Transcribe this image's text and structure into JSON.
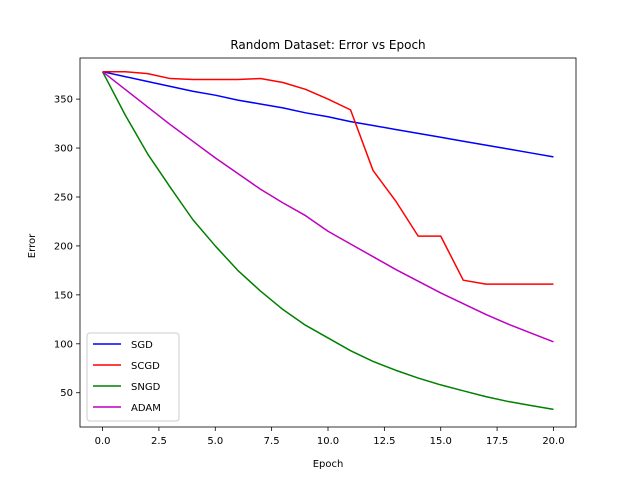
{
  "chart_data": {
    "type": "line",
    "title": "Random Dataset: Error vs Epoch",
    "xlabel": "Epoch",
    "ylabel": "Error",
    "xlim": [
      -1.0,
      21.0
    ],
    "ylim": [
      15,
      392
    ],
    "xticks": [
      0,
      2.5,
      5,
      7.5,
      10,
      12.5,
      15,
      17.5,
      20
    ],
    "xtick_labels": [
      "0.0",
      "2.5",
      "5.0",
      "7.5",
      "10.0",
      "12.5",
      "15.0",
      "17.5",
      "20.0"
    ],
    "yticks": [
      50,
      100,
      150,
      200,
      250,
      300,
      350
    ],
    "ytick_labels": [
      "50",
      "100",
      "150",
      "200",
      "250",
      "300",
      "350"
    ],
    "grid": false,
    "legend_position": "lower-left",
    "x": [
      0,
      1,
      2,
      3,
      4,
      5,
      6,
      7,
      8,
      9,
      10,
      11,
      12,
      13,
      14,
      15,
      16,
      17,
      18,
      19,
      20
    ],
    "series": [
      {
        "name": "SGD",
        "color": "#0000ff",
        "values": [
          378,
          373,
          368,
          363,
          358,
          354,
          349,
          345,
          341,
          336,
          332,
          327,
          323,
          319,
          315,
          311,
          307,
          303,
          299,
          295,
          291
        ]
      },
      {
        "name": "SCGD",
        "color": "#ff0000",
        "values": [
          378,
          378,
          376,
          371,
          370,
          370,
          370,
          371,
          367,
          360,
          350,
          339,
          277,
          246,
          210,
          210,
          165,
          161,
          161,
          161,
          161
        ]
      },
      {
        "name": "SNGD",
        "color": "#008000",
        "values": [
          378,
          334,
          294,
          260,
          227,
          200,
          175,
          154,
          135,
          119,
          106,
          93,
          82,
          73,
          65,
          58,
          52,
          46,
          41,
          37,
          33
        ]
      },
      {
        "name": "ADAM",
        "color": "#bf00bf",
        "values": [
          378,
          360,
          342,
          324,
          307,
          290,
          274,
          258,
          244,
          231,
          215,
          202,
          189,
          176,
          164,
          152,
          141,
          130,
          120,
          111,
          102
        ]
      }
    ]
  }
}
